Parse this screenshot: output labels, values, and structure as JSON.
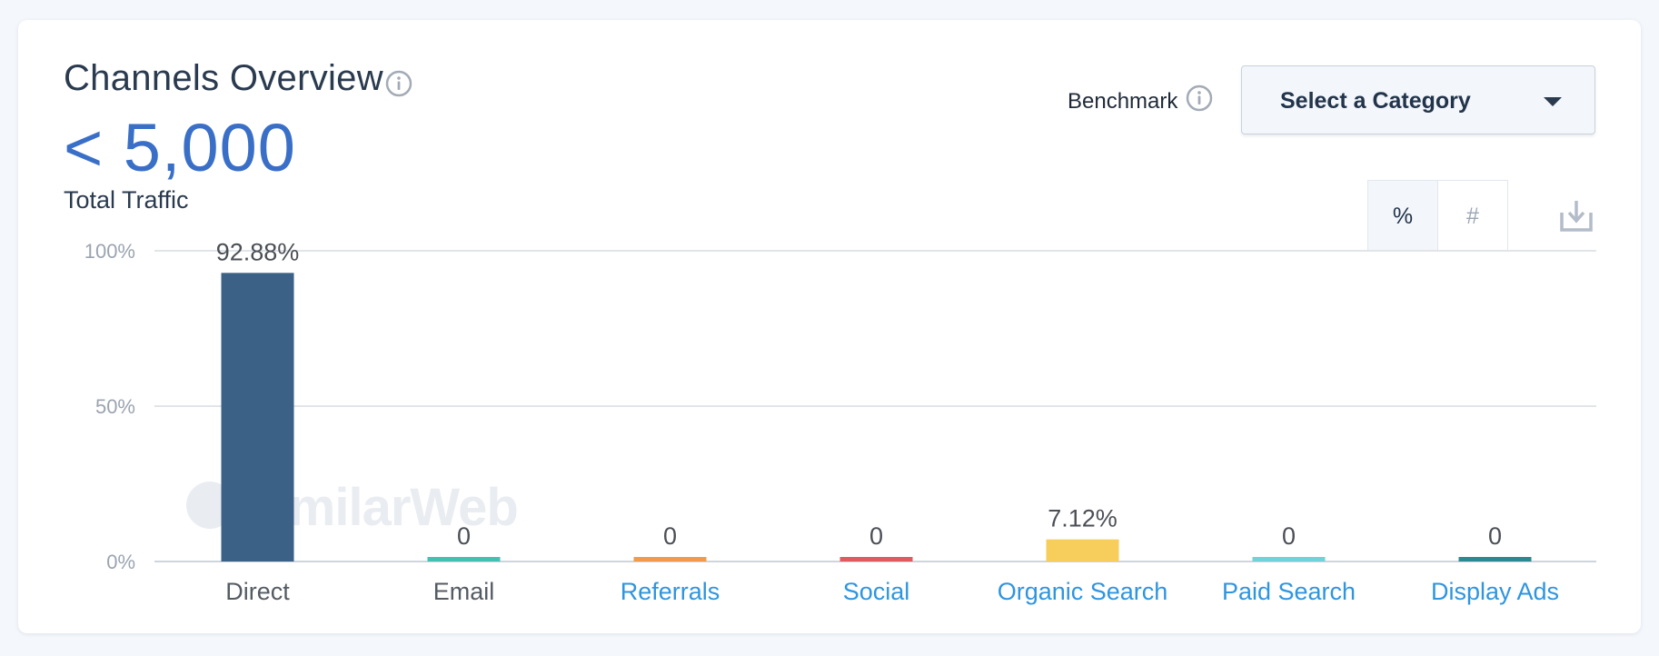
{
  "header": {
    "title": "Channels Overview",
    "total_value": "< 5,000",
    "total_label": "Total Traffic"
  },
  "benchmark": {
    "label": "Benchmark",
    "select_label": "Select a Category"
  },
  "toggle": {
    "percent_label": "%",
    "number_label": "#",
    "active": "percent"
  },
  "watermark": {
    "text": "SimilarWeb"
  },
  "icons": {
    "info": "info-circle-icon",
    "download": "download-icon",
    "caret": "caret-down-icon"
  },
  "colors": {
    "accent_blue": "#3a6fc8",
    "link_blue": "#2f95df",
    "text_dark": "#2a3a4f"
  },
  "chart_data": {
    "type": "bar",
    "categories": [
      "Direct",
      "Email",
      "Referrals",
      "Social",
      "Organic Search",
      "Paid Search",
      "Display Ads"
    ],
    "values": [
      92.88,
      0,
      0,
      0,
      7.12,
      0,
      0
    ],
    "value_labels": [
      "92.88%",
      "0",
      "0",
      "0",
      "7.12%",
      "0",
      "0"
    ],
    "colors": [
      "#3b6187",
      "#42c1b3",
      "#f09a4b",
      "#e05a5f",
      "#f7cd5b",
      "#6fd3d9",
      "#2b8991"
    ],
    "category_link": [
      false,
      false,
      true,
      true,
      true,
      true,
      true
    ],
    "y_ticks": [
      0,
      50,
      100
    ],
    "y_tick_labels": [
      "0%",
      "50%",
      "100%"
    ],
    "ylim": [
      0,
      100
    ],
    "grid": true
  }
}
